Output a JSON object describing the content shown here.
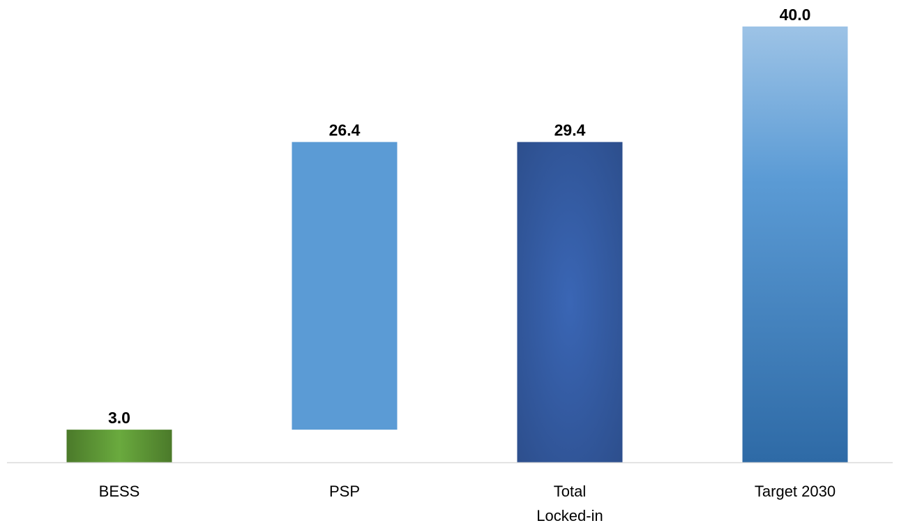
{
  "chart_data": {
    "type": "bar",
    "title": "",
    "xlabel": "",
    "ylabel": "",
    "ylim": [
      0,
      40
    ],
    "grid": false,
    "legend": "none",
    "categories": [
      [
        "BESS"
      ],
      [
        "PSP"
      ],
      [
        "Total",
        "Locked-in"
      ],
      [
        "Target 2030"
      ]
    ],
    "bars": [
      {
        "category": "BESS",
        "base": 0,
        "value": 3.0,
        "label": "3.0",
        "style": "green"
      },
      {
        "category": "PSP",
        "base": 3.0,
        "value": 26.4,
        "label": "26.4",
        "style": "light-blue"
      },
      {
        "category": "Total Locked-in",
        "base": 0,
        "value": 29.4,
        "label": "29.4",
        "style": "dark-blue"
      },
      {
        "category": "Target 2030",
        "base": 0,
        "value": 40.0,
        "label": "40.0",
        "style": "blue-gradient"
      }
    ],
    "colors": {
      "green_light": "#6aaa3e",
      "green_dark": "#4b7a2a",
      "light_blue": "#5b9bd5",
      "dark_blue_center": "#3a66b5",
      "dark_blue_edge": "#2c4d8a",
      "target_top": "#9dc3e6",
      "target_mid": "#5b9bd5",
      "target_bottom": "#2e6aa6",
      "axis": "#d9d9d9"
    }
  }
}
